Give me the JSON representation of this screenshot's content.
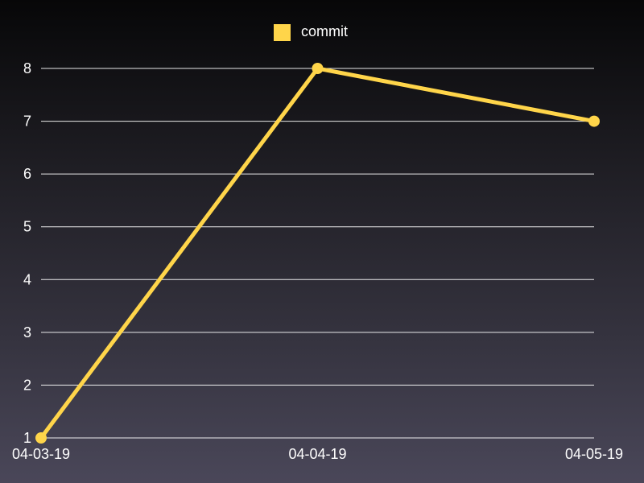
{
  "chart_data": {
    "type": "line",
    "categories": [
      "04-03-19",
      "04-04-19",
      "04-05-19"
    ],
    "series": [
      {
        "name": "commit",
        "values": [
          1,
          8,
          7
        ]
      }
    ],
    "ylim": [
      1,
      8
    ],
    "yticks": [
      1,
      2,
      3,
      4,
      5,
      6,
      7,
      8
    ],
    "grid": true,
    "legend_position": "top-center"
  },
  "colors": {
    "series": "#ffd54a",
    "grid": "#ffffff",
    "text": "#ffffff"
  }
}
